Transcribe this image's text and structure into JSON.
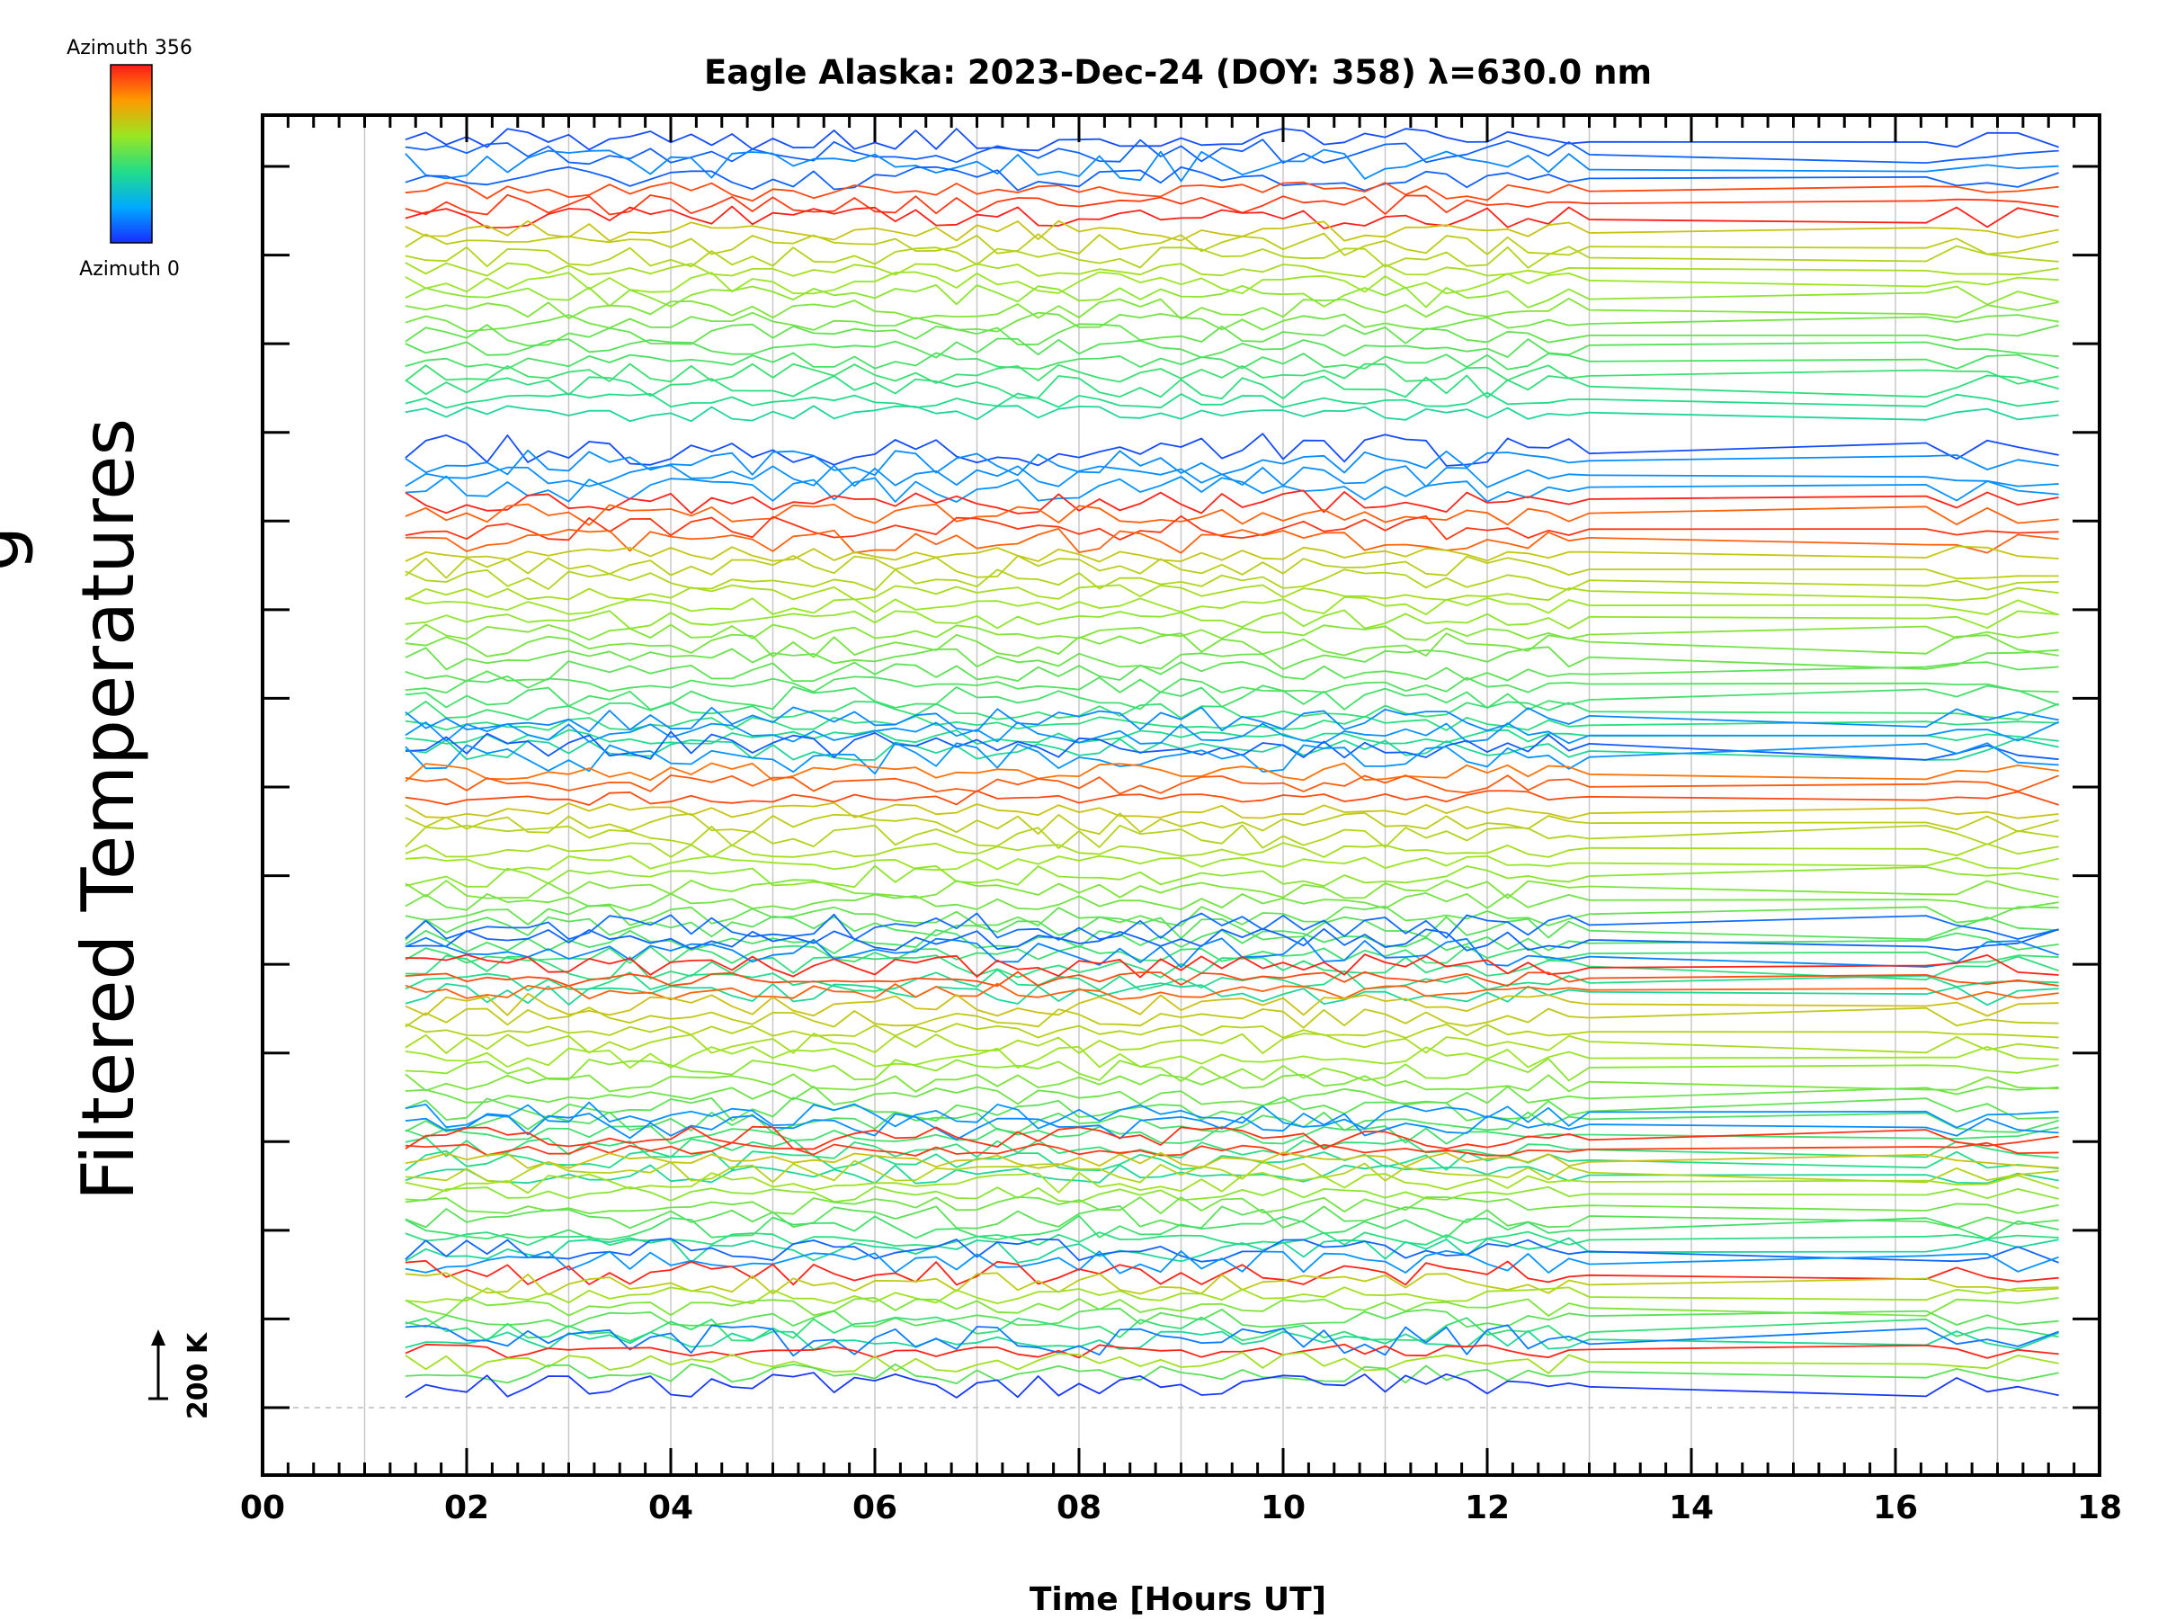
{
  "chart_data": {
    "type": "line",
    "title": "Eagle Alaska: 2023-Dec-24 (DOY: 358) λ=630.0 nm",
    "xlabel": "Time [Hours UT]",
    "ylabel": "Filtered Temperatures",
    "ylabel_partial": "g",
    "xlim": [
      0,
      18
    ],
    "x_tick_labels": [
      "00",
      "02",
      "04",
      "06",
      "08",
      "10",
      "12",
      "14",
      "16",
      "18"
    ],
    "y_ticks_unlabeled": 15,
    "scale_bar_label": "200 K",
    "colorbar": {
      "top_label": "Azimuth 356",
      "bottom_label": "Azimuth 0",
      "min": 0,
      "max": 356
    },
    "n_look_directions": 115,
    "sample_times_hours": [
      1.4,
      1.6,
      1.8,
      2.0,
      2.2,
      2.4,
      2.6,
      2.8,
      3.0,
      3.2,
      3.4,
      3.6,
      3.8,
      4.0,
      4.2,
      4.4,
      4.6,
      4.8,
      5.0,
      5.2,
      5.4,
      5.6,
      5.8,
      6.0,
      6.2,
      6.4,
      6.6,
      6.8,
      7.0,
      7.2,
      7.4,
      7.6,
      7.8,
      8.0,
      8.2,
      8.4,
      8.6,
      8.8,
      9.0,
      9.2,
      9.4,
      9.6,
      9.8,
      10.0,
      10.2,
      10.4,
      10.6,
      10.8,
      11.0,
      11.2,
      11.4,
      11.6,
      11.8,
      12.0,
      12.2,
      12.4,
      12.6,
      12.8,
      13.0,
      16.3,
      16.6,
      16.9,
      17.2,
      17.6
    ],
    "colors": {
      "axis": "#000000",
      "grid": "#c8c8c8"
    }
  }
}
